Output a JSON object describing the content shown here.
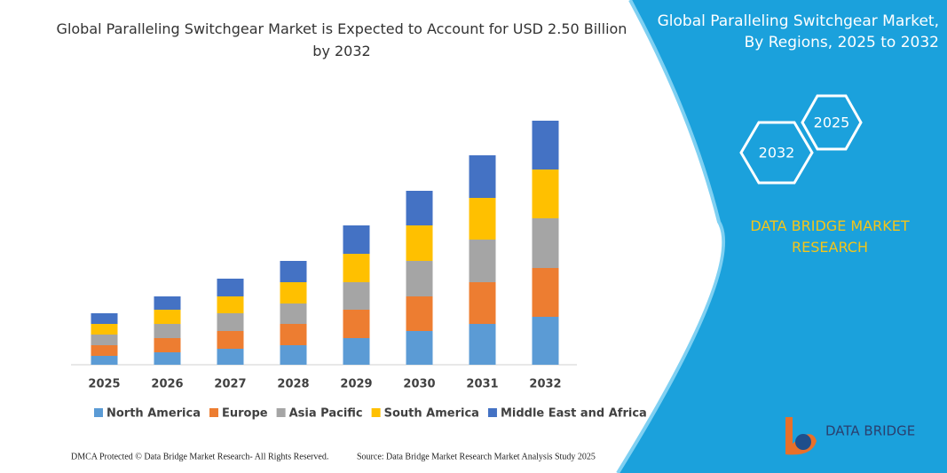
{
  "chart_data": {
    "type": "stacked_bar",
    "title": "Global Paralleling Switchgear Market is Expected to Account for USD 2.50 Billion by 2032",
    "categories": [
      "2025",
      "2026",
      "2027",
      "2028",
      "2029",
      "2030",
      "2031",
      "2032"
    ],
    "series": [
      {
        "name": "North America",
        "color": "#5b9bd5",
        "values": [
          10,
          14,
          18,
          22,
          30,
          38,
          46,
          54
        ]
      },
      {
        "name": "Europe",
        "color": "#ed7d31",
        "values": [
          12,
          16,
          20,
          24,
          32,
          39,
          47,
          55
        ]
      },
      {
        "name": "Asia Pacific",
        "color": "#a5a5a5",
        "values": [
          12,
          16,
          20,
          23,
          31,
          40,
          48,
          56
        ]
      },
      {
        "name": "South America",
        "color": "#ffc000",
        "values": [
          12,
          16,
          19,
          24,
          32,
          40,
          47,
          55
        ]
      },
      {
        "name": "Middle East and Africa",
        "color": "#4472c4",
        "values": [
          12,
          15,
          20,
          24,
          32,
          39,
          48,
          55
        ]
      }
    ],
    "ylim": [
      0,
      280
    ]
  },
  "panel": {
    "title": "Global Paralleling Switchgear Market, By Regions, 2025 to 2032",
    "hexagons": [
      "2025",
      "2032"
    ],
    "brand": "DATA BRIDGE MARKET RESEARCH",
    "logo": "DATA BRIDGE"
  },
  "footer": {
    "left": "DMCA Protected © Data Bridge Market Research- All Rights Reserved.",
    "right": "Source: Data Bridge Market Research Market Analysis Study 2025"
  }
}
